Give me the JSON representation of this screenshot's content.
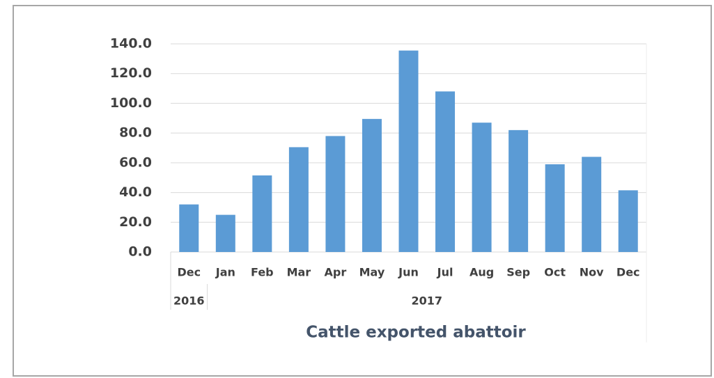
{
  "chart_data": {
    "type": "bar",
    "title": "Cattle exported abattoir",
    "categories": [
      "Dec",
      "Jan",
      "Feb",
      "Mar",
      "Apr",
      "May",
      "Jun",
      "Jul",
      "Aug",
      "Sep",
      "Oct",
      "Nov",
      "Dec"
    ],
    "groups": [
      {
        "name": "2016",
        "span": 1
      },
      {
        "name": "2017",
        "span": 12
      }
    ],
    "values": [
      32,
      25,
      51.5,
      70.5,
      78,
      89.5,
      135.5,
      108,
      87,
      82,
      59,
      64,
      41.5
    ],
    "color": "#5b9bd5",
    "ylim": [
      0,
      140
    ],
    "yticks": [
      {
        "value": 0,
        "label": "0.0"
      },
      {
        "value": 20,
        "label": "20.0"
      },
      {
        "value": 40,
        "label": "40.0"
      },
      {
        "value": 60,
        "label": "60.0"
      },
      {
        "value": 80,
        "label": "80.0"
      },
      {
        "value": 100,
        "label": "100.0"
      },
      {
        "value": 120,
        "label": "120.0"
      },
      {
        "value": 140,
        "label": "140.0"
      }
    ],
    "grid": true
  }
}
